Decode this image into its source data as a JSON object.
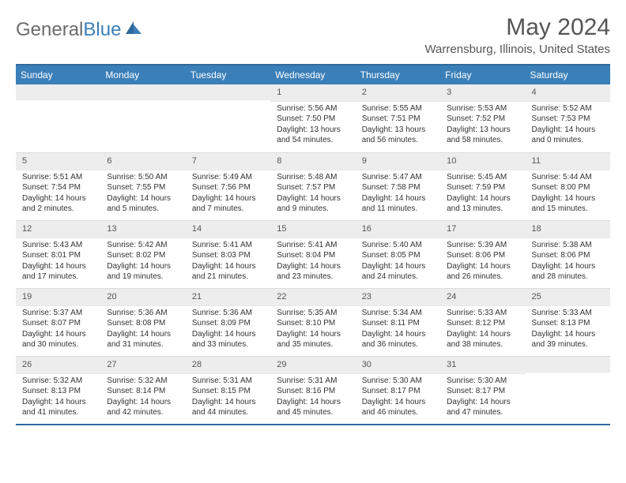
{
  "brand": {
    "part1": "General",
    "part2": "Blue"
  },
  "title": "May 2024",
  "location": "Warrensburg, Illinois, United States",
  "colors": {
    "header_bg": "#3b7fb8",
    "header_border": "#2f6a9c",
    "daynum_bg": "#ededed",
    "text": "#333333",
    "muted": "#555555"
  },
  "day_names": [
    "Sunday",
    "Monday",
    "Tuesday",
    "Wednesday",
    "Thursday",
    "Friday",
    "Saturday"
  ],
  "weeks": [
    [
      {
        "day": "",
        "sunrise": "",
        "sunset": "",
        "daylight": ""
      },
      {
        "day": "",
        "sunrise": "",
        "sunset": "",
        "daylight": ""
      },
      {
        "day": "",
        "sunrise": "",
        "sunset": "",
        "daylight": ""
      },
      {
        "day": "1",
        "sunrise": "Sunrise: 5:56 AM",
        "sunset": "Sunset: 7:50 PM",
        "daylight": "Daylight: 13 hours and 54 minutes."
      },
      {
        "day": "2",
        "sunrise": "Sunrise: 5:55 AM",
        "sunset": "Sunset: 7:51 PM",
        "daylight": "Daylight: 13 hours and 56 minutes."
      },
      {
        "day": "3",
        "sunrise": "Sunrise: 5:53 AM",
        "sunset": "Sunset: 7:52 PM",
        "daylight": "Daylight: 13 hours and 58 minutes."
      },
      {
        "day": "4",
        "sunrise": "Sunrise: 5:52 AM",
        "sunset": "Sunset: 7:53 PM",
        "daylight": "Daylight: 14 hours and 0 minutes."
      }
    ],
    [
      {
        "day": "5",
        "sunrise": "Sunrise: 5:51 AM",
        "sunset": "Sunset: 7:54 PM",
        "daylight": "Daylight: 14 hours and 2 minutes."
      },
      {
        "day": "6",
        "sunrise": "Sunrise: 5:50 AM",
        "sunset": "Sunset: 7:55 PM",
        "daylight": "Daylight: 14 hours and 5 minutes."
      },
      {
        "day": "7",
        "sunrise": "Sunrise: 5:49 AM",
        "sunset": "Sunset: 7:56 PM",
        "daylight": "Daylight: 14 hours and 7 minutes."
      },
      {
        "day": "8",
        "sunrise": "Sunrise: 5:48 AM",
        "sunset": "Sunset: 7:57 PM",
        "daylight": "Daylight: 14 hours and 9 minutes."
      },
      {
        "day": "9",
        "sunrise": "Sunrise: 5:47 AM",
        "sunset": "Sunset: 7:58 PM",
        "daylight": "Daylight: 14 hours and 11 minutes."
      },
      {
        "day": "10",
        "sunrise": "Sunrise: 5:45 AM",
        "sunset": "Sunset: 7:59 PM",
        "daylight": "Daylight: 14 hours and 13 minutes."
      },
      {
        "day": "11",
        "sunrise": "Sunrise: 5:44 AM",
        "sunset": "Sunset: 8:00 PM",
        "daylight": "Daylight: 14 hours and 15 minutes."
      }
    ],
    [
      {
        "day": "12",
        "sunrise": "Sunrise: 5:43 AM",
        "sunset": "Sunset: 8:01 PM",
        "daylight": "Daylight: 14 hours and 17 minutes."
      },
      {
        "day": "13",
        "sunrise": "Sunrise: 5:42 AM",
        "sunset": "Sunset: 8:02 PM",
        "daylight": "Daylight: 14 hours and 19 minutes."
      },
      {
        "day": "14",
        "sunrise": "Sunrise: 5:41 AM",
        "sunset": "Sunset: 8:03 PM",
        "daylight": "Daylight: 14 hours and 21 minutes."
      },
      {
        "day": "15",
        "sunrise": "Sunrise: 5:41 AM",
        "sunset": "Sunset: 8:04 PM",
        "daylight": "Daylight: 14 hours and 23 minutes."
      },
      {
        "day": "16",
        "sunrise": "Sunrise: 5:40 AM",
        "sunset": "Sunset: 8:05 PM",
        "daylight": "Daylight: 14 hours and 24 minutes."
      },
      {
        "day": "17",
        "sunrise": "Sunrise: 5:39 AM",
        "sunset": "Sunset: 8:06 PM",
        "daylight": "Daylight: 14 hours and 26 minutes."
      },
      {
        "day": "18",
        "sunrise": "Sunrise: 5:38 AM",
        "sunset": "Sunset: 8:06 PM",
        "daylight": "Daylight: 14 hours and 28 minutes."
      }
    ],
    [
      {
        "day": "19",
        "sunrise": "Sunrise: 5:37 AM",
        "sunset": "Sunset: 8:07 PM",
        "daylight": "Daylight: 14 hours and 30 minutes."
      },
      {
        "day": "20",
        "sunrise": "Sunrise: 5:36 AM",
        "sunset": "Sunset: 8:08 PM",
        "daylight": "Daylight: 14 hours and 31 minutes."
      },
      {
        "day": "21",
        "sunrise": "Sunrise: 5:36 AM",
        "sunset": "Sunset: 8:09 PM",
        "daylight": "Daylight: 14 hours and 33 minutes."
      },
      {
        "day": "22",
        "sunrise": "Sunrise: 5:35 AM",
        "sunset": "Sunset: 8:10 PM",
        "daylight": "Daylight: 14 hours and 35 minutes."
      },
      {
        "day": "23",
        "sunrise": "Sunrise: 5:34 AM",
        "sunset": "Sunset: 8:11 PM",
        "daylight": "Daylight: 14 hours and 36 minutes."
      },
      {
        "day": "24",
        "sunrise": "Sunrise: 5:33 AM",
        "sunset": "Sunset: 8:12 PM",
        "daylight": "Daylight: 14 hours and 38 minutes."
      },
      {
        "day": "25",
        "sunrise": "Sunrise: 5:33 AM",
        "sunset": "Sunset: 8:13 PM",
        "daylight": "Daylight: 14 hours and 39 minutes."
      }
    ],
    [
      {
        "day": "26",
        "sunrise": "Sunrise: 5:32 AM",
        "sunset": "Sunset: 8:13 PM",
        "daylight": "Daylight: 14 hours and 41 minutes."
      },
      {
        "day": "27",
        "sunrise": "Sunrise: 5:32 AM",
        "sunset": "Sunset: 8:14 PM",
        "daylight": "Daylight: 14 hours and 42 minutes."
      },
      {
        "day": "28",
        "sunrise": "Sunrise: 5:31 AM",
        "sunset": "Sunset: 8:15 PM",
        "daylight": "Daylight: 14 hours and 44 minutes."
      },
      {
        "day": "29",
        "sunrise": "Sunrise: 5:31 AM",
        "sunset": "Sunset: 8:16 PM",
        "daylight": "Daylight: 14 hours and 45 minutes."
      },
      {
        "day": "30",
        "sunrise": "Sunrise: 5:30 AM",
        "sunset": "Sunset: 8:17 PM",
        "daylight": "Daylight: 14 hours and 46 minutes."
      },
      {
        "day": "31",
        "sunrise": "Sunrise: 5:30 AM",
        "sunset": "Sunset: 8:17 PM",
        "daylight": "Daylight: 14 hours and 47 minutes."
      },
      {
        "day": "",
        "sunrise": "",
        "sunset": "",
        "daylight": ""
      }
    ]
  ]
}
